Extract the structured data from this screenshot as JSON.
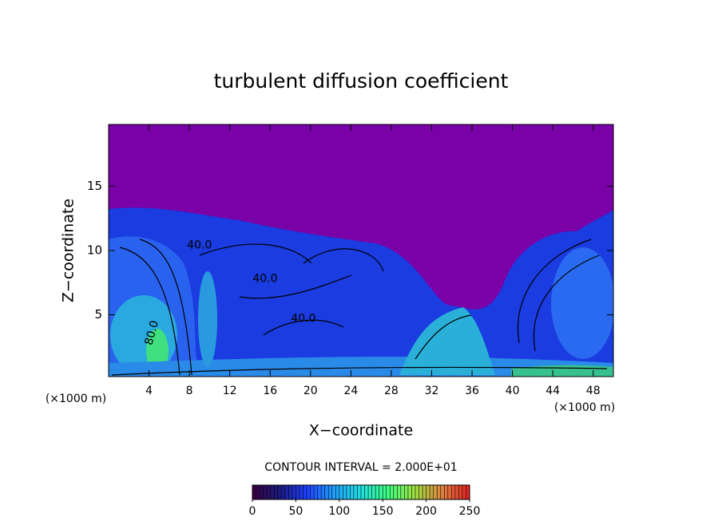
{
  "chart_data": {
    "type": "contour",
    "title": "turbulent diffusion coefficient",
    "x_label": "X−coordinate",
    "y_label": "Z−coordinate",
    "x_unit": "(×1000 m)",
    "y_unit": "(×1000 m)",
    "xlim": [
      0,
      50
    ],
    "ylim": [
      0.2,
      19.8
    ],
    "xticks": [
      4,
      8,
      12,
      16,
      20,
      24,
      28,
      32,
      36,
      40,
      44,
      48
    ],
    "yticks": [
      5,
      10,
      15
    ],
    "contour_interval_label": "CONTOUR INTERVAL = 2.000E+01",
    "contour_labels": [
      {
        "value": 40,
        "label": "40.0",
        "x": 9,
        "y": 10.4
      },
      {
        "value": 40,
        "label": "40.0",
        "x": 15.5,
        "y": 7.8
      },
      {
        "value": 40,
        "label": "40.0",
        "x": 19.3,
        "y": 4.7
      },
      {
        "value": 80,
        "label": "80.0",
        "x": 4.3,
        "y": 3.6
      }
    ],
    "colorbar": {
      "clim": [
        0,
        250
      ],
      "ticks": [
        0,
        50,
        100,
        150,
        200,
        250
      ],
      "colormap": [
        "#3a0040",
        "#1a1a80",
        "#1e40ff",
        "#20a0ff",
        "#20e0e0",
        "#40ff80",
        "#a0e040",
        "#e08040",
        "#e02020"
      ]
    }
  }
}
